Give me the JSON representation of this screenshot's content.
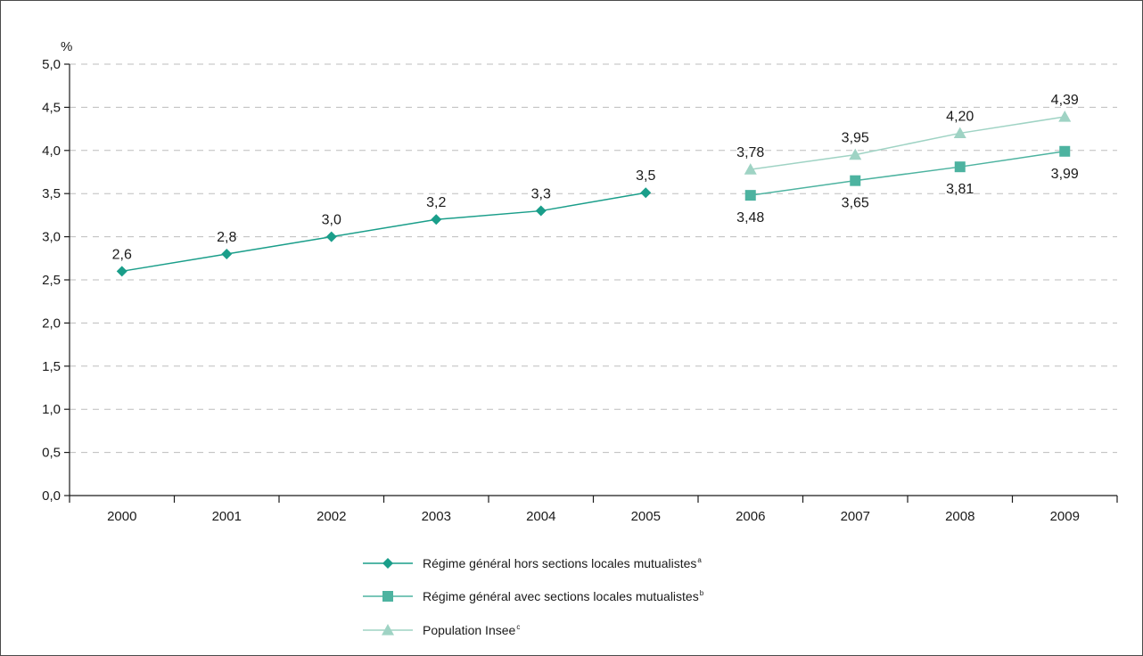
{
  "chart_data": {
    "type": "line",
    "ylabel": "%",
    "ylim": [
      0,
      5
    ],
    "yticks": [
      "0,0",
      "0,5",
      "1,0",
      "1,5",
      "2,0",
      "2,5",
      "3,0",
      "3,5",
      "4,0",
      "4,5",
      "5,0"
    ],
    "ytick_values": [
      0,
      0.5,
      1,
      1.5,
      2,
      2.5,
      3,
      3.5,
      4,
      4.5,
      5
    ],
    "categories": [
      "2000",
      "2001",
      "2002",
      "2003",
      "2004",
      "2005",
      "2006",
      "2007",
      "2008",
      "2009"
    ],
    "grid": true,
    "legend_position": "bottom-center",
    "series": [
      {
        "name": "Régime général hors sections locales mutualistes",
        "superscript": "a",
        "marker": "diamond",
        "color": "#1a9e8a",
        "x": [
          "2000",
          "2001",
          "2002",
          "2003",
          "2004",
          "2005"
        ],
        "values": [
          2.6,
          2.8,
          3.0,
          3.2,
          3.3,
          3.51
        ],
        "labels": [
          "2,6",
          "2,8",
          "3,0",
          "3,2",
          "3,3",
          "3,5"
        ],
        "label_position": "above"
      },
      {
        "name": "Régime général avec sections locales mutualistes",
        "superscript": "b",
        "marker": "square",
        "color": "#4db3a0",
        "x": [
          "2006",
          "2007",
          "2008",
          "2009"
        ],
        "values": [
          3.48,
          3.65,
          3.81,
          3.99
        ],
        "labels": [
          "3,48",
          "3,65",
          "3,81",
          "3,99"
        ],
        "label_position": "below"
      },
      {
        "name": "Population Insee",
        "superscript": "c",
        "marker": "triangle",
        "color": "#9fd3c4",
        "x": [
          "2006",
          "2007",
          "2008",
          "2009"
        ],
        "values": [
          3.78,
          3.95,
          4.2,
          4.39
        ],
        "labels": [
          "3,78",
          "3,95",
          "4,20",
          "4,39"
        ],
        "label_position": "above"
      }
    ]
  }
}
